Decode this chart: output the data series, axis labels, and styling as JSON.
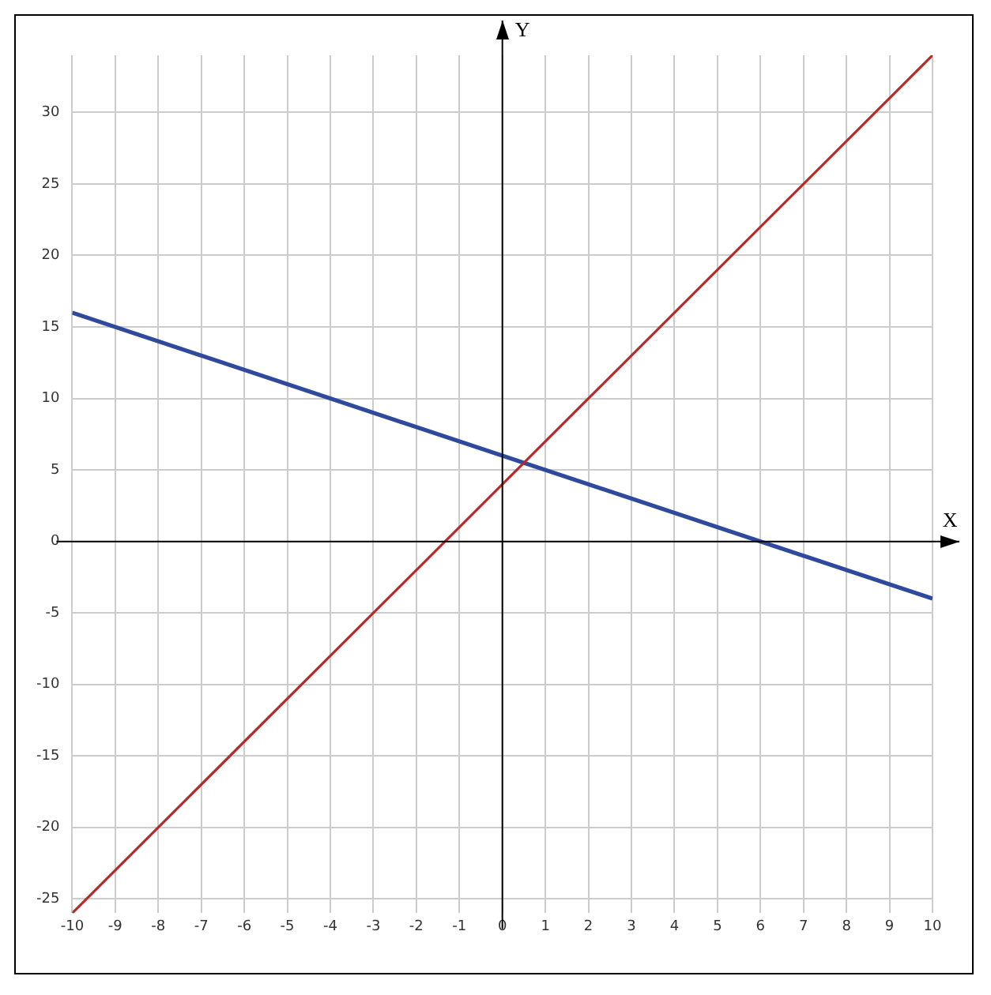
{
  "chart_data": {
    "type": "line",
    "xlabel": "X",
    "ylabel": "Y",
    "x": [
      -10,
      10
    ],
    "series": [
      {
        "color": "#b52a2a",
        "values": [
          -26,
          34
        ]
      },
      {
        "color": "#2f4a9c",
        "values": [
          16,
          -4
        ]
      }
    ],
    "xlim": [
      -10,
      10
    ],
    "xticks": [
      -10,
      -9,
      -8,
      -7,
      -6,
      -5,
      -4,
      -3,
      -2,
      -1,
      0,
      1,
      2,
      3,
      4,
      5,
      6,
      7,
      8,
      9,
      10
    ],
    "ylim": [
      -26,
      34
    ],
    "yticks": [
      -25,
      -20,
      -15,
      -10,
      -5,
      0,
      5,
      10,
      15,
      20,
      25,
      30
    ],
    "grid": true,
    "legend": false,
    "marker": "none",
    "line_style": "solid"
  }
}
